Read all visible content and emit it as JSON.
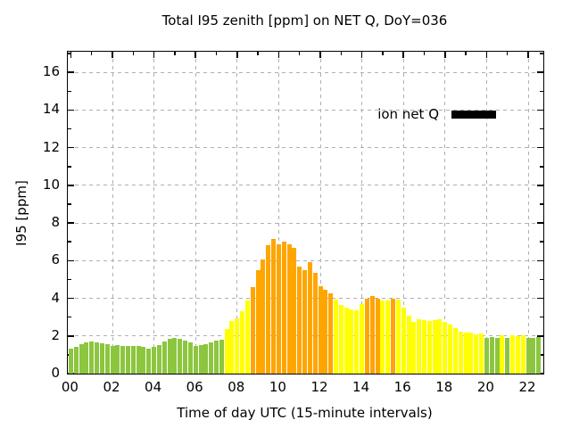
{
  "title": "Total I95 zenith [ppm] on NET Q, DoY=036",
  "legend": {
    "label": "ion net Q",
    "swatch_color": "#000000"
  },
  "axes": {
    "ylabel": "I95 [ppm]",
    "xlabel": "Time of day UTC (15-minute intervals)",
    "y_major_ticks": [
      0,
      2,
      4,
      6,
      8,
      10,
      12,
      14,
      16
    ],
    "y_minor_ticks": [
      1,
      3,
      5,
      7,
      9,
      11,
      13,
      15,
      17
    ],
    "x_major_tick_hours": [
      0,
      2,
      4,
      6,
      8,
      10,
      12,
      14,
      16,
      18,
      20,
      22
    ],
    "x_major_tick_labels": [
      "00",
      "02",
      "04",
      "06",
      "08",
      "10",
      "12",
      "14",
      "16",
      "18",
      "20",
      "22"
    ],
    "x_minor_tick_hours": [
      1,
      3,
      5,
      7,
      9,
      11,
      13,
      15,
      17,
      19,
      21
    ]
  },
  "chart_data": {
    "type": "bar",
    "title": "Total I95 zenith [ppm] on NET Q, DoY=036",
    "xlabel": "Time of day UTC (15-minute intervals)",
    "ylabel": "I95 [ppm]",
    "legend_entries": [
      "ion net Q"
    ],
    "legend_position": "top-right",
    "grid": true,
    "ylim": [
      0,
      17.1
    ],
    "xlim_hours": [
      0,
      22.75
    ],
    "interval_minutes": 15,
    "colors": {
      "green": "#8CC63F",
      "yellow": "#FFFF00",
      "orange": "#FFA500"
    },
    "color_rule": {
      "green_if_below": 2,
      "yellow_if_below": 4,
      "orange_if_at_or_above": 4
    },
    "grid_color": "#b0b0b0",
    "times": [
      "00:00",
      "00:15",
      "00:30",
      "00:45",
      "01:00",
      "01:15",
      "01:30",
      "01:45",
      "02:00",
      "02:15",
      "02:30",
      "02:45",
      "03:00",
      "03:15",
      "03:30",
      "03:45",
      "04:00",
      "04:15",
      "04:30",
      "04:45",
      "05:00",
      "05:15",
      "05:30",
      "05:45",
      "06:00",
      "06:15",
      "06:30",
      "06:45",
      "07:00",
      "07:15",
      "07:30",
      "07:45",
      "08:00",
      "08:15",
      "08:30",
      "08:45",
      "09:00",
      "09:15",
      "09:30",
      "09:45",
      "10:00",
      "10:15",
      "10:30",
      "10:45",
      "11:00",
      "11:15",
      "11:30",
      "11:45",
      "12:00",
      "12:15",
      "12:30",
      "12:45",
      "13:00",
      "13:15",
      "13:30",
      "13:45",
      "14:00",
      "14:15",
      "14:30",
      "14:45",
      "15:00",
      "15:15",
      "15:30",
      "15:45",
      "16:00",
      "16:15",
      "16:30",
      "16:45",
      "17:00",
      "17:15",
      "17:30",
      "17:45",
      "18:00",
      "18:15",
      "18:30",
      "18:45",
      "19:00",
      "19:15",
      "19:30",
      "19:45",
      "20:00",
      "20:15",
      "20:30",
      "20:45",
      "21:00",
      "21:15",
      "21:30",
      "21:45",
      "22:00",
      "22:15",
      "22:30"
    ],
    "values": [
      1.35,
      1.4,
      1.55,
      1.65,
      1.7,
      1.65,
      1.62,
      1.55,
      1.45,
      1.5,
      1.48,
      1.45,
      1.45,
      1.45,
      1.42,
      1.35,
      1.4,
      1.5,
      1.72,
      1.83,
      1.88,
      1.84,
      1.77,
      1.64,
      1.47,
      1.5,
      1.55,
      1.66,
      1.74,
      1.8,
      2.35,
      2.8,
      2.95,
      3.3,
      3.9,
      4.6,
      5.5,
      6.05,
      6.8,
      7.15,
      6.85,
      7.0,
      6.85,
      6.7,
      5.7,
      5.5,
      5.9,
      5.35,
      4.65,
      4.45,
      4.25,
      3.95,
      3.65,
      3.5,
      3.4,
      3.35,
      3.7,
      4.0,
      4.1,
      4.0,
      3.9,
      3.9,
      4.0,
      3.95,
      3.5,
      3.1,
      2.75,
      2.9,
      2.85,
      2.8,
      2.85,
      2.9,
      2.75,
      2.6,
      2.4,
      2.25,
      2.2,
      2.18,
      2.1,
      2.12,
      1.9,
      1.95,
      1.9,
      2.05,
      1.9,
      2.02,
      2.0,
      2.02,
      1.9,
      1.88,
      1.95
    ]
  }
}
